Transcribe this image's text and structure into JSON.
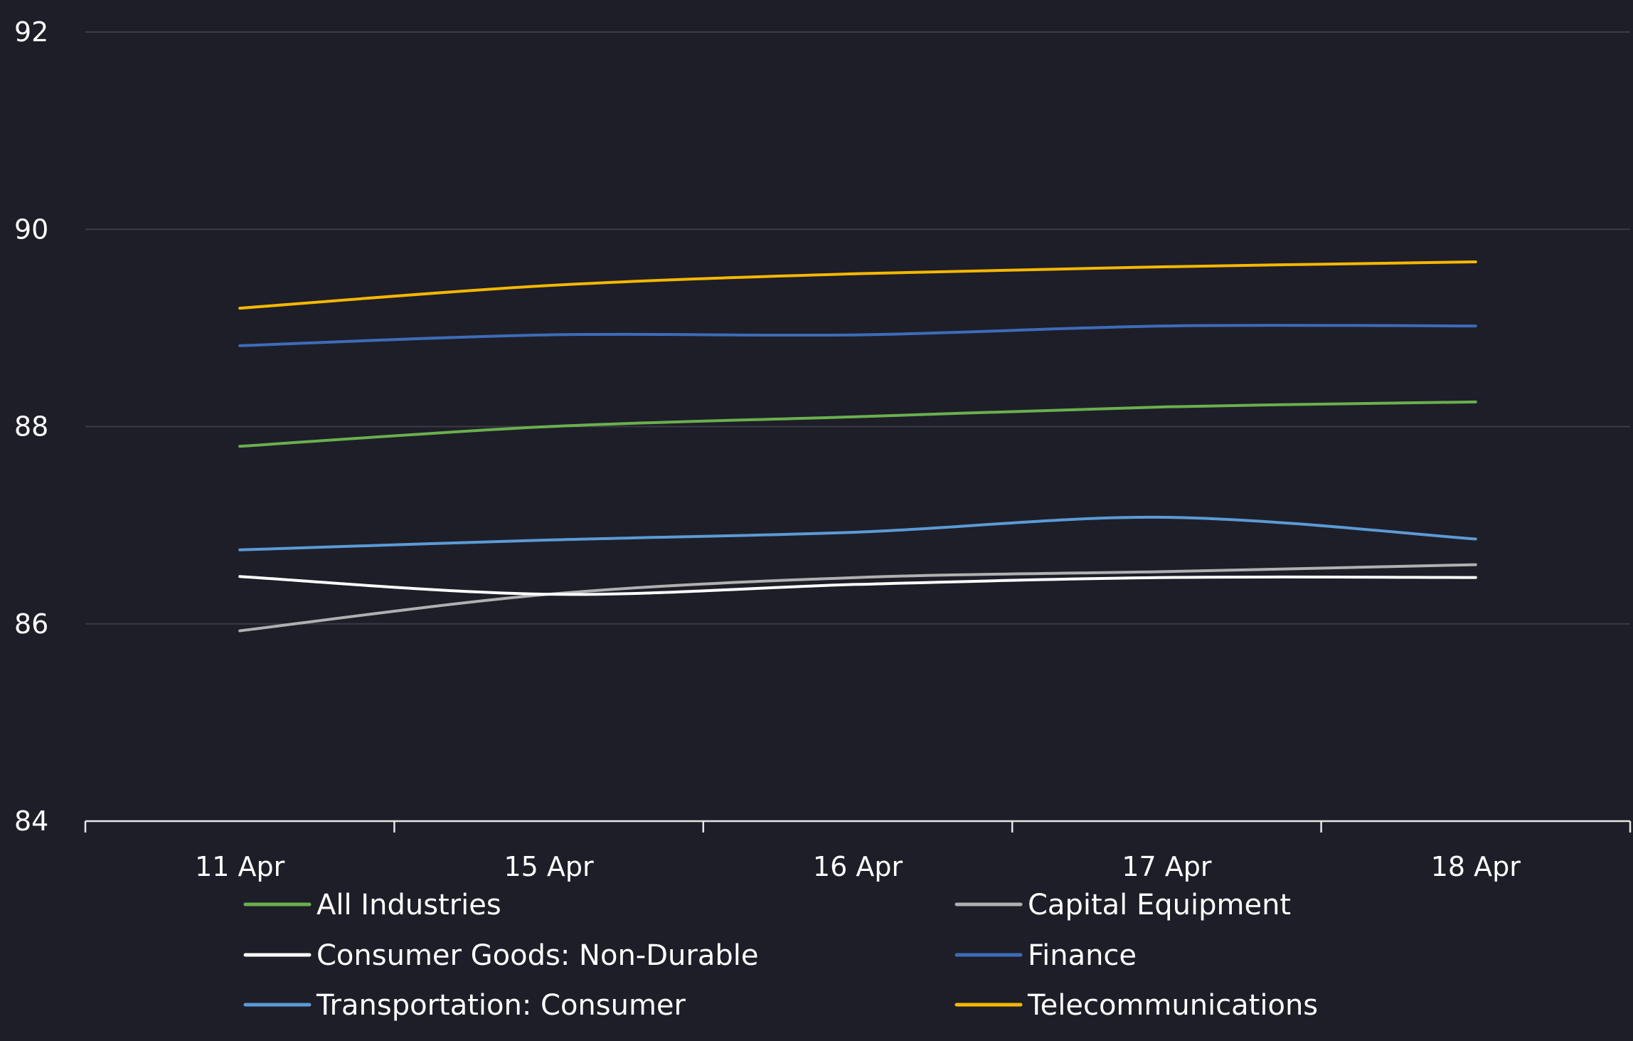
{
  "chart_data": {
    "type": "line",
    "title": "",
    "xlabel": "",
    "ylabel": "",
    "x": [
      "11 Apr",
      "15 Apr",
      "16 Apr",
      "17 Apr",
      "18 Apr"
    ],
    "ylim": [
      84,
      92
    ],
    "yticks": [
      84,
      86,
      88,
      90,
      92
    ],
    "grid": true,
    "legend_position": "bottom",
    "series": [
      {
        "name": "All Industries",
        "color": "#6ab04c",
        "values": [
          87.8,
          88.0,
          88.1,
          88.2,
          88.25
        ]
      },
      {
        "name": "Capital Equipment",
        "color": "#b0b0b0",
        "values": [
          85.93,
          86.3,
          86.47,
          86.53,
          86.6
        ]
      },
      {
        "name": "Consumer Goods: Non-Durable",
        "color": "#ffffff",
        "values": [
          86.48,
          86.3,
          86.4,
          86.47,
          86.47
        ]
      },
      {
        "name": "Finance",
        "color": "#3d6cb9",
        "values": [
          88.82,
          88.93,
          88.93,
          89.02,
          89.02
        ]
      },
      {
        "name": "Transportation: Consumer",
        "color": "#5b9bd5",
        "values": [
          86.75,
          86.85,
          86.93,
          87.08,
          86.86
        ]
      },
      {
        "name": "Telecommunications",
        "color": "#f5b800",
        "values": [
          89.2,
          89.43,
          89.55,
          89.62,
          89.67
        ]
      }
    ]
  }
}
